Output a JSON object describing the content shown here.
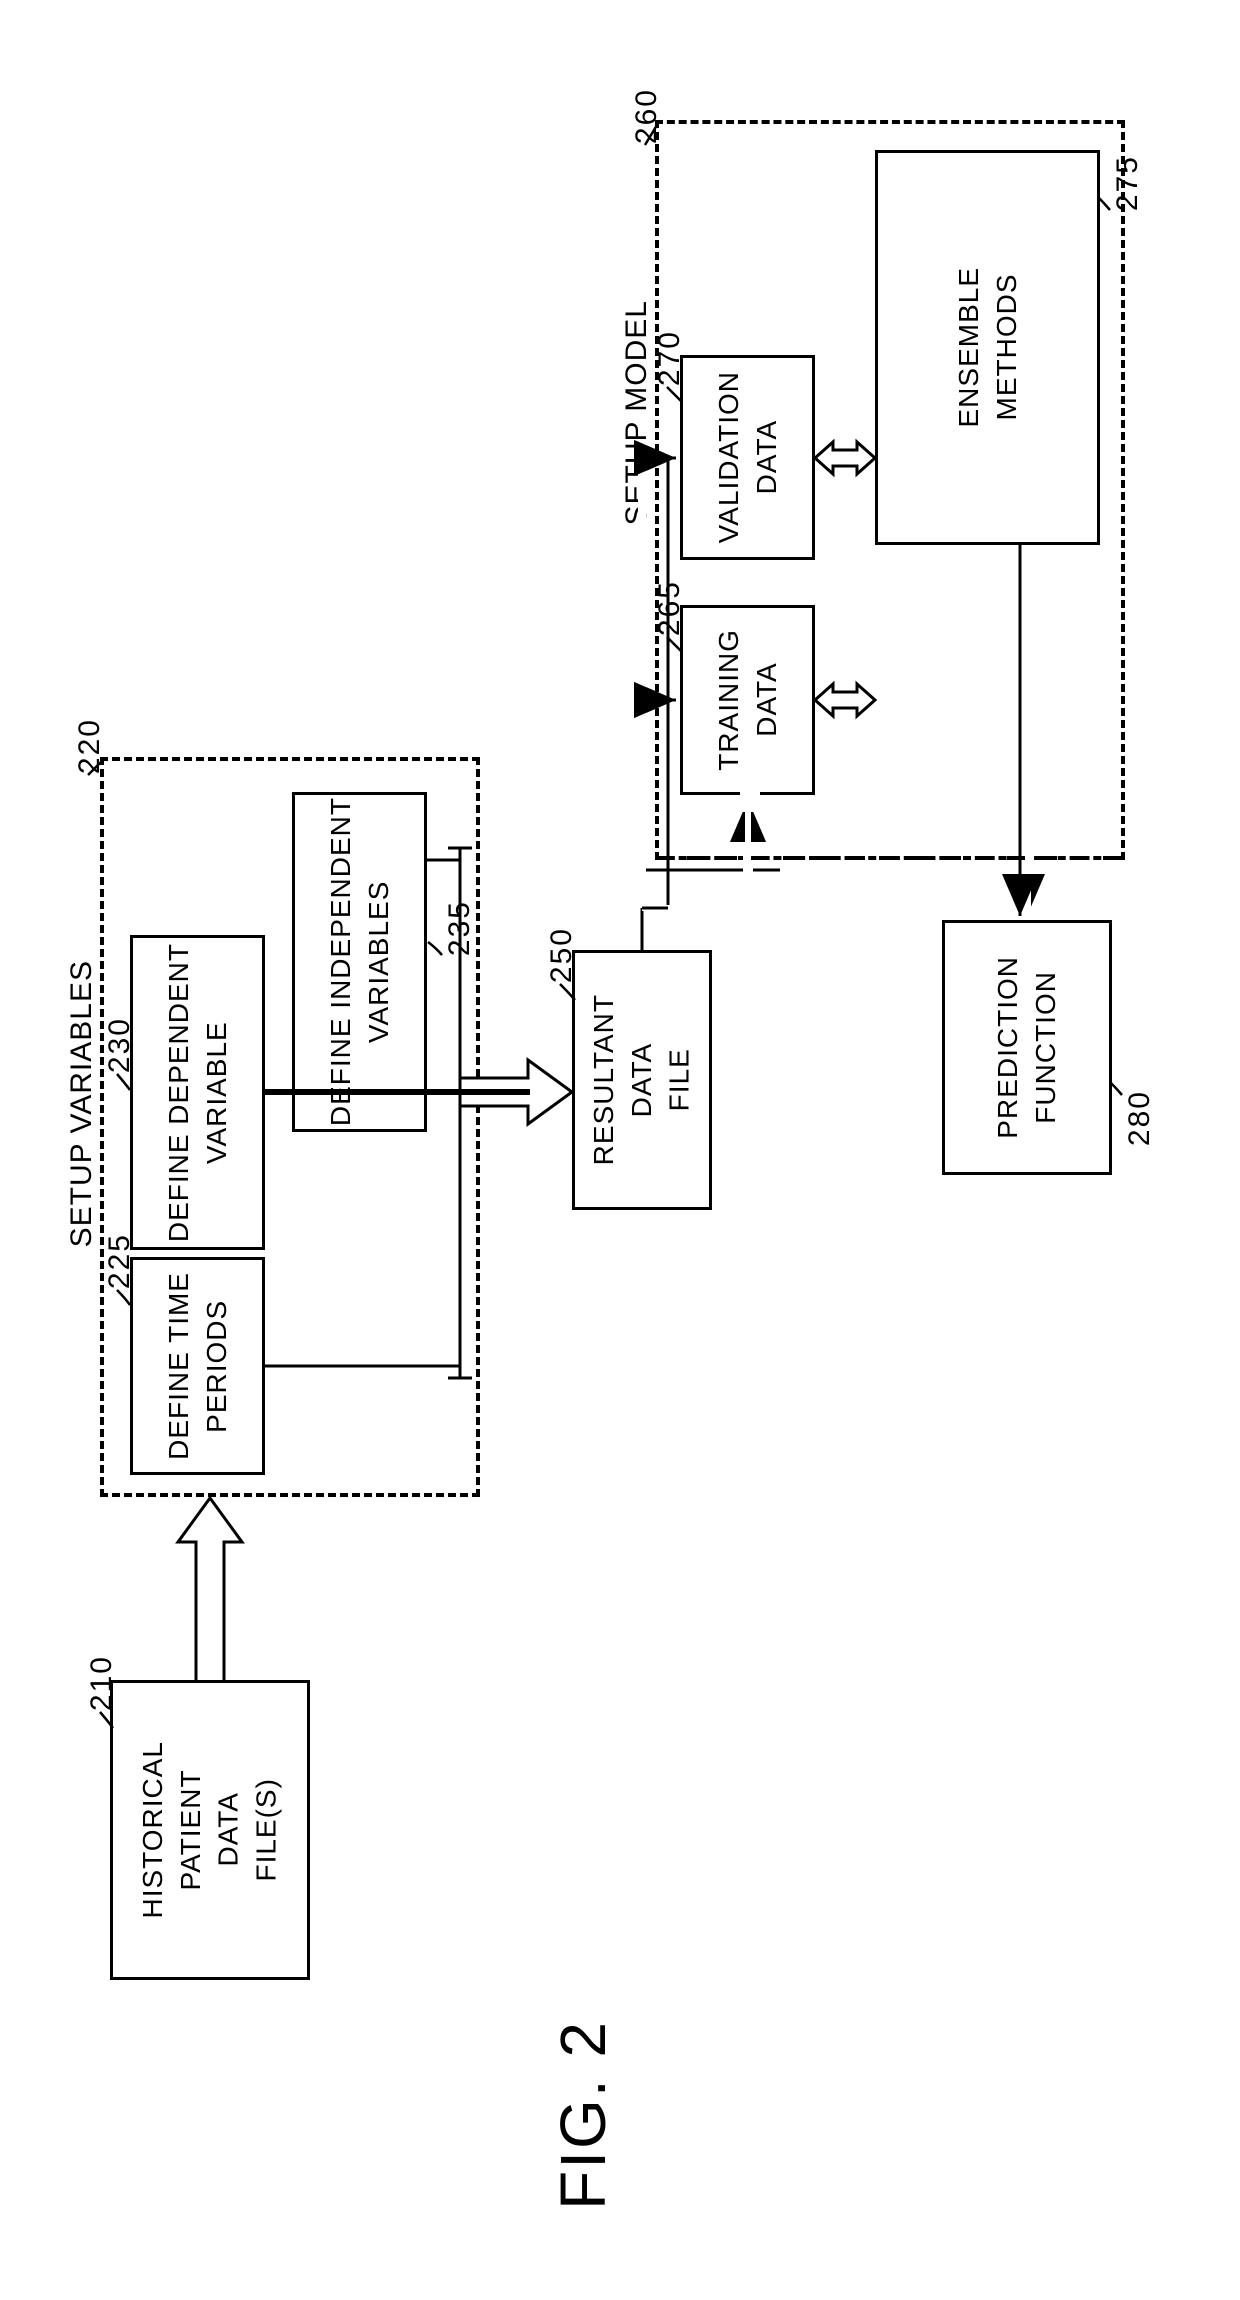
{
  "figure_label": "FIG. 2",
  "colors": {
    "stroke": "#000000",
    "background": "#ffffff"
  },
  "line_widths": {
    "box": 3,
    "dashed": 4,
    "conn": 3
  },
  "font": {
    "box_size": 28,
    "label_size": 30,
    "ref_size": 30,
    "fig_size": 64
  },
  "groups": {
    "setup_variables": {
      "label": "SETUP VARIABLES",
      "ref": "220"
    },
    "setup_model": {
      "label": "SETUP MODEL",
      "ref": "260"
    }
  },
  "boxes": {
    "historical": {
      "text": "HISTORICAL\nPATIENT\nDATA\nFILE(S)",
      "ref": "210"
    },
    "time_periods": {
      "text": "DEFINE TIME\nPERIODS",
      "ref": "225"
    },
    "dependent": {
      "text": "DEFINE DEPENDENT\nVARIABLE",
      "ref": "230"
    },
    "independent": {
      "text": "DEFINE INDEPENDENT\nVARIABLES",
      "ref": "235"
    },
    "resultant": {
      "text": "RESULTANT\nDATA\nFILE",
      "ref": "250"
    },
    "training": {
      "text": "TRAINING\nDATA",
      "ref": "265"
    },
    "validation": {
      "text": "VALIDATION\nDATA",
      "ref": "270"
    },
    "ensemble": {
      "text": "ENSEMBLE\nMETHODS",
      "ref": "275"
    },
    "prediction": {
      "text": "PREDICTION\nFUNCTION",
      "ref": "280"
    }
  }
}
